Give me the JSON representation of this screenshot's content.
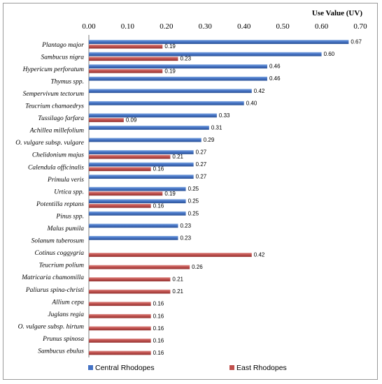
{
  "chart_data": {
    "type": "bar",
    "orientation": "horizontal",
    "title": "",
    "xlabel": "Use Value  (UV)",
    "ylabel": "",
    "xlim": [
      0,
      0.7
    ],
    "xticks": [
      "0.00",
      "0.10",
      "0.20",
      "0.30",
      "0.40",
      "0.50",
      "0.60",
      "0.70"
    ],
    "grid": false,
    "legend_position": "bottom",
    "categories": [
      "Plantago major",
      "Sambucus nigra",
      "Hypericum perforatum",
      "Thymus spp.",
      "Sempervivum tectorum",
      "Teucrium chamaedrys",
      "Tussilago farfara",
      "Achillea millefolium",
      "O. vulgare subsp. vulgare",
      "Chelidonium majus",
      "Calendula officinalis",
      "Primula veris",
      "Urtica spp.",
      "Potentilla reptans",
      "Pinus spp.",
      "Malus pumila",
      "Solanum tuberosum",
      "Cotinus coggygria",
      "Teucrium polium",
      "Matricaria chamomilla",
      "Paliurus spina-christi",
      "Allium cepa",
      "Juglans regia",
      "O. vulgare subsp. hirtum",
      "Prunus spinosa",
      "Sambucus ebulus"
    ],
    "series": [
      {
        "name": "Central Rhodopes",
        "color": "#4472C4",
        "values": [
          0.67,
          0.6,
          0.46,
          0.46,
          0.42,
          0.4,
          0.33,
          0.31,
          0.29,
          0.27,
          0.27,
          0.27,
          0.25,
          0.25,
          0.25,
          0.23,
          0.23,
          null,
          null,
          null,
          null,
          null,
          null,
          null,
          null,
          null
        ],
        "labels": [
          "0.67",
          "0.60",
          "0.46",
          "0.46",
          "0.42",
          "0.40",
          "0.33",
          "0.31",
          "0.29",
          "0.27",
          "0.27",
          "0.27",
          "0.25",
          "0.25",
          "0.25",
          "0.23",
          "0.23",
          null,
          null,
          null,
          null,
          null,
          null,
          null,
          null,
          null
        ]
      },
      {
        "name": "East Rhodopes",
        "color": "#C0504D",
        "values": [
          0.19,
          0.23,
          0.19,
          null,
          null,
          null,
          0.09,
          null,
          null,
          0.21,
          0.16,
          null,
          0.19,
          0.16,
          null,
          null,
          null,
          0.42,
          0.26,
          0.21,
          0.21,
          0.16,
          0.16,
          0.16,
          0.16,
          0.16
        ],
        "labels": [
          "0.19",
          "0.23",
          "0.19",
          null,
          null,
          null,
          "0.09",
          null,
          null,
          "0.21",
          "0.16",
          null,
          "0.19",
          "0.16",
          null,
          null,
          null,
          "0.42",
          "0.26",
          "0.21",
          "0.21",
          "0.16",
          "0.16",
          "0.16",
          "0.16",
          "0.16"
        ]
      }
    ]
  }
}
